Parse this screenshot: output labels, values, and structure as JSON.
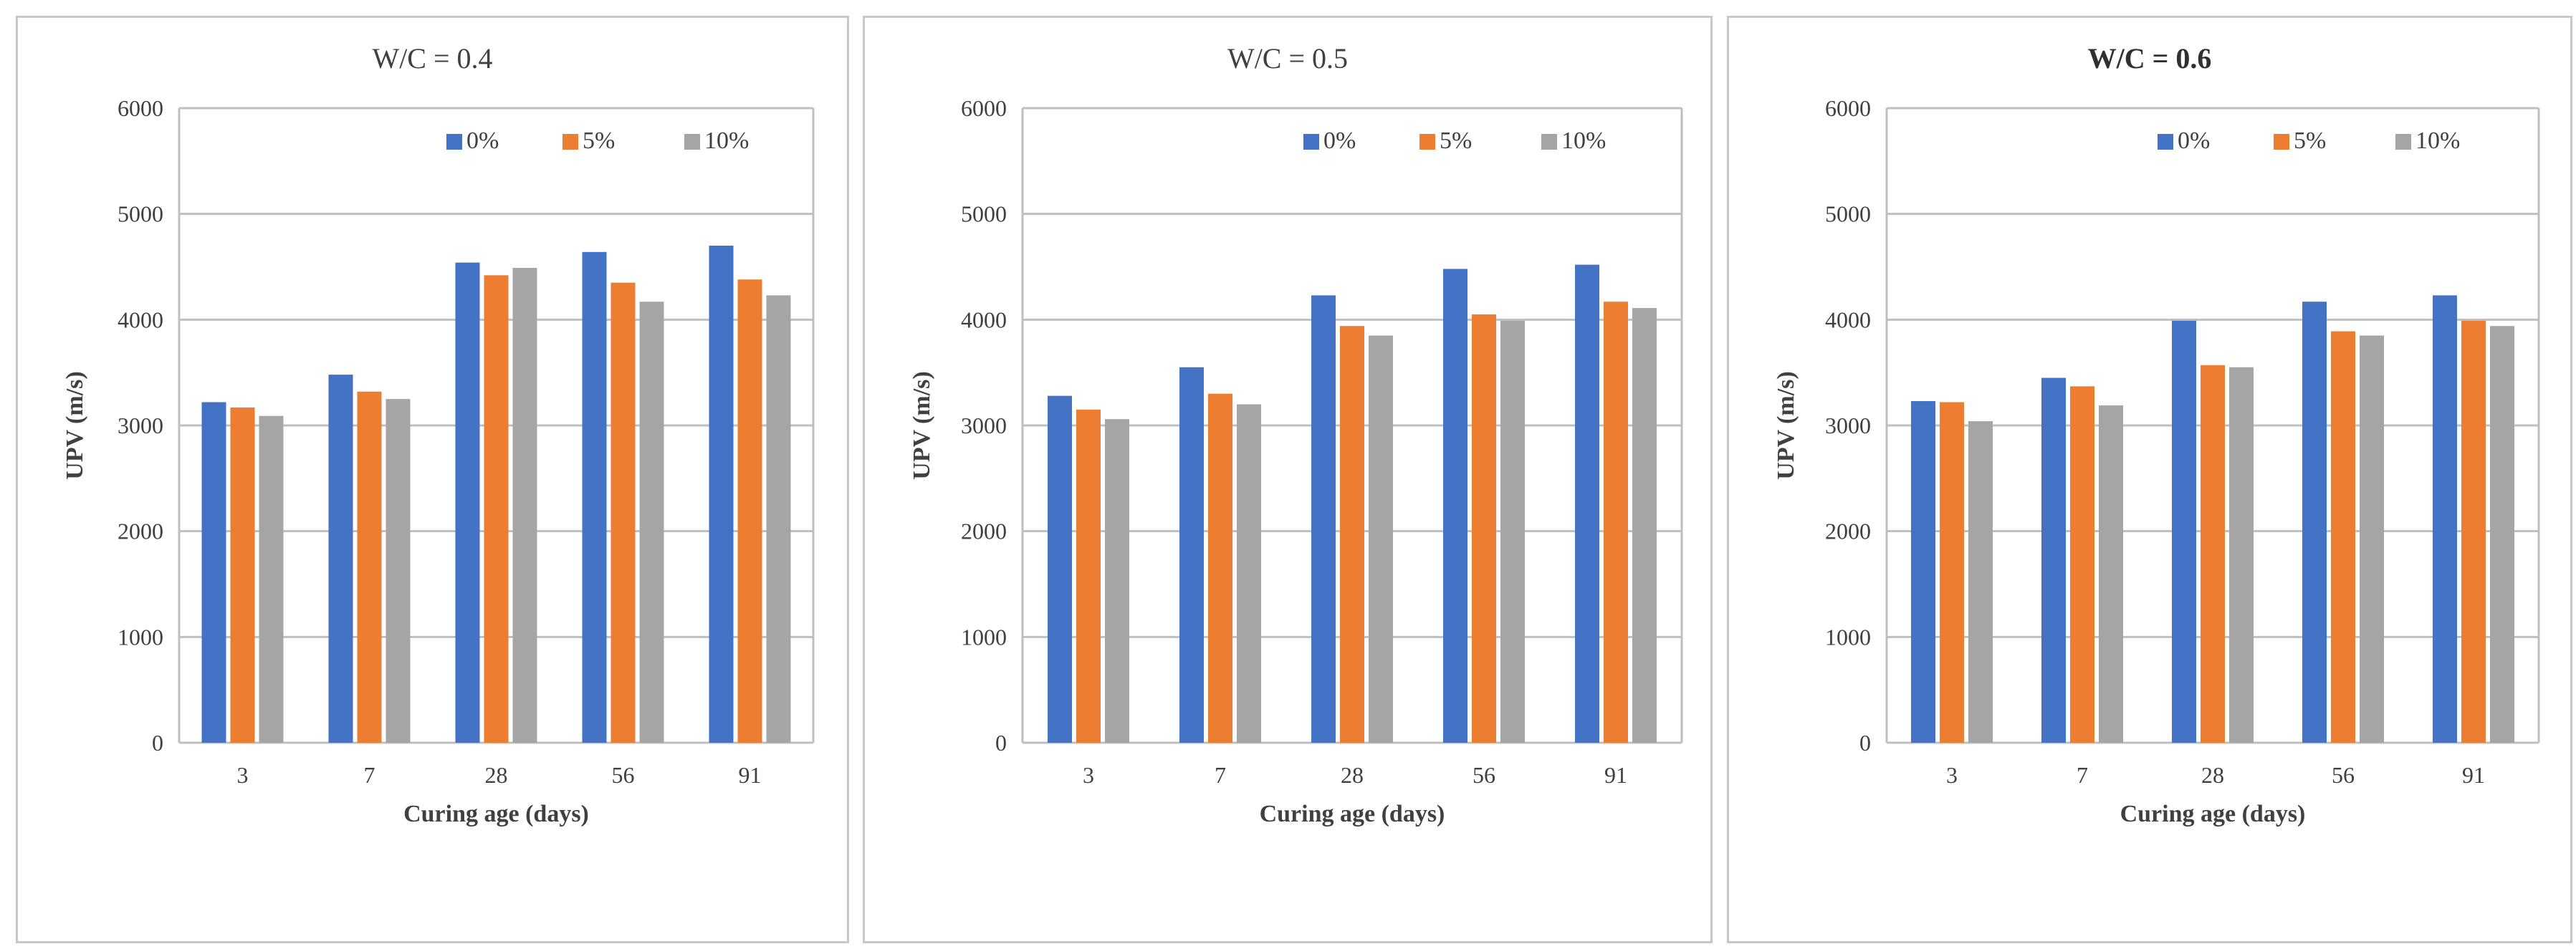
{
  "chart_data": [
    {
      "type": "bar",
      "title": "W/C = 0.4",
      "title_bold": false,
      "xlabel": "Curing age (days)",
      "ylabel": "UPV (m/s)",
      "ylim": [
        0,
        6000
      ],
      "yticks": [
        0,
        1000,
        2000,
        3000,
        4000,
        5000,
        6000
      ],
      "grid": true,
      "legend_position": "top-right",
      "categories": [
        "3",
        "7",
        "28",
        "56",
        "91"
      ],
      "series": [
        {
          "name": "0%",
          "color": "#4472c4",
          "values": [
            3220,
            3480,
            4540,
            4640,
            4700
          ]
        },
        {
          "name": "5%",
          "color": "#ed7d31",
          "values": [
            3170,
            3320,
            4420,
            4350,
            4380
          ]
        },
        {
          "name": "10%",
          "color": "#a5a5a5",
          "values": [
            3090,
            3250,
            4490,
            4170,
            4230
          ]
        }
      ]
    },
    {
      "type": "bar",
      "title": "W/C = 0.5",
      "title_bold": false,
      "xlabel": "Curing age (days)",
      "ylabel": "UPV (m/s)",
      "ylim": [
        0,
        6000
      ],
      "yticks": [
        0,
        1000,
        2000,
        3000,
        4000,
        5000,
        6000
      ],
      "grid": true,
      "legend_position": "top-right",
      "categories": [
        "3",
        "7",
        "28",
        "56",
        "91"
      ],
      "series": [
        {
          "name": "0%",
          "color": "#4472c4",
          "values": [
            3280,
            3550,
            4230,
            4480,
            4520
          ]
        },
        {
          "name": "5%",
          "color": "#ed7d31",
          "values": [
            3150,
            3300,
            3940,
            4050,
            4170
          ]
        },
        {
          "name": "10%",
          "color": "#a5a5a5",
          "values": [
            3060,
            3200,
            3850,
            3990,
            4110
          ]
        }
      ]
    },
    {
      "type": "bar",
      "title": "W/C = 0.6",
      "title_bold": true,
      "xlabel": "Curing age (days)",
      "ylabel": "UPV (m/s)",
      "ylim": [
        0,
        6000
      ],
      "yticks": [
        0,
        1000,
        2000,
        3000,
        4000,
        5000,
        6000
      ],
      "grid": true,
      "legend_position": "top-right",
      "categories": [
        "3",
        "7",
        "28",
        "56",
        "91"
      ],
      "series": [
        {
          "name": "0%",
          "color": "#4472c4",
          "values": [
            3230,
            3450,
            3990,
            4170,
            4230
          ]
        },
        {
          "name": "5%",
          "color": "#ed7d31",
          "values": [
            3220,
            3370,
            3570,
            3890,
            3990
          ]
        },
        {
          "name": "10%",
          "color": "#a5a5a5",
          "values": [
            3040,
            3190,
            3550,
            3850,
            3940
          ]
        }
      ]
    }
  ]
}
